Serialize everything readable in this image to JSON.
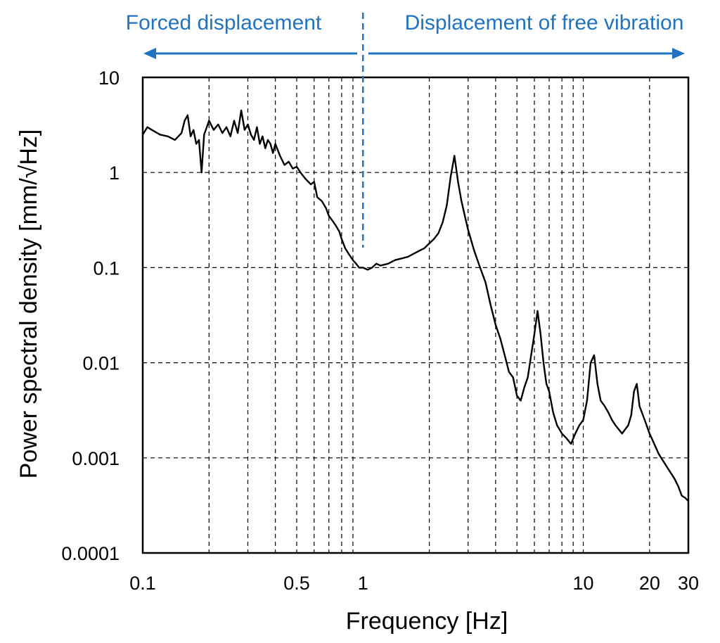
{
  "chart_data": {
    "type": "line",
    "x_scale": "log",
    "y_scale": "log",
    "xlim": [
      0.1,
      30
    ],
    "ylim": [
      0.0001,
      10
    ],
    "xlabel": "Frequency [Hz]",
    "ylabel": "Power spectral density [mm/√Hz]",
    "x_tick_labels": [
      {
        "value": 0.1,
        "label": "0.1"
      },
      {
        "value": 0.5,
        "label": "0.5"
      },
      {
        "value": 1,
        "label": "1"
      },
      {
        "value": 10,
        "label": "10"
      },
      {
        "value": 20,
        "label": "20"
      },
      {
        "value": 30,
        "label": "30"
      }
    ],
    "y_tick_labels": [
      {
        "value": 10,
        "label": "10"
      },
      {
        "value": 1,
        "label": "1"
      },
      {
        "value": 0.1,
        "label": "0.1"
      },
      {
        "value": 0.01,
        "label": "0.01"
      },
      {
        "value": 0.001,
        "label": "0.001"
      },
      {
        "value": 0.0001,
        "label": "0.0001"
      }
    ],
    "x_grid": [
      0.2,
      0.3,
      0.4,
      0.5,
      0.6,
      0.7,
      0.8,
      0.9,
      1,
      2,
      3,
      4,
      5,
      6,
      7,
      8,
      9,
      10,
      20
    ],
    "y_grid": [
      1,
      0.1,
      0.01,
      0.001
    ],
    "grid": true,
    "legend": "none",
    "regions": {
      "divider_x": 1,
      "left_label": "Forced displacement",
      "right_label": "Displacement of free vibration"
    },
    "series": [
      {
        "x": [
          0.1,
          0.105,
          0.11,
          0.12,
          0.13,
          0.14,
          0.15,
          0.155,
          0.16,
          0.165,
          0.17,
          0.175,
          0.18,
          0.185,
          0.19,
          0.2,
          0.21,
          0.22,
          0.23,
          0.24,
          0.25,
          0.26,
          0.27,
          0.28,
          0.29,
          0.3,
          0.31,
          0.32,
          0.33,
          0.34,
          0.35,
          0.36,
          0.37,
          0.38,
          0.39,
          0.4,
          0.42,
          0.44,
          0.46,
          0.48,
          0.5,
          0.52,
          0.55,
          0.58,
          0.6,
          0.62,
          0.65,
          0.68,
          0.7,
          0.72,
          0.75,
          0.78,
          0.8,
          0.83,
          0.86,
          0.9,
          0.93,
          0.96,
          1.0,
          1.05,
          1.1,
          1.15,
          1.2,
          1.3,
          1.4,
          1.5,
          1.6,
          1.7,
          1.8,
          1.9,
          2.0,
          2.1,
          2.2,
          2.3,
          2.4,
          2.5,
          2.6,
          2.7,
          2.8,
          2.9,
          3.0,
          3.2,
          3.4,
          3.6,
          3.8,
          4.0,
          4.2,
          4.4,
          4.6,
          4.8,
          5.0,
          5.2,
          5.4,
          5.6,
          5.8,
          6.0,
          6.2,
          6.4,
          6.6,
          6.8,
          7.0,
          7.3,
          7.6,
          8.0,
          8.4,
          8.8,
          9.2,
          9.6,
          10.0,
          10.4,
          10.8,
          11.2,
          11.6,
          12.0,
          12.5,
          13.0,
          13.5,
          14.0,
          15.0,
          16.0,
          16.5,
          17.0,
          17.5,
          18.0,
          19.0,
          20.0,
          21.0,
          22.0,
          24.0,
          26.0,
          27.0,
          28.0,
          29.0,
          30.0
        ],
        "y": [
          2.5,
          3.0,
          2.8,
          2.5,
          2.4,
          2.2,
          2.6,
          3.5,
          4.0,
          2.4,
          2.8,
          2.0,
          2.2,
          1.0,
          2.5,
          3.5,
          2.8,
          3.2,
          2.6,
          3.0,
          2.4,
          3.5,
          2.6,
          4.5,
          2.8,
          3.2,
          2.5,
          2.2,
          3.0,
          2.0,
          2.4,
          1.8,
          2.2,
          2.0,
          1.6,
          2.0,
          1.5,
          1.2,
          1.3,
          1.1,
          1.15,
          1.0,
          0.85,
          0.75,
          0.8,
          0.55,
          0.5,
          0.42,
          0.35,
          0.32,
          0.28,
          0.24,
          0.2,
          0.16,
          0.14,
          0.12,
          0.11,
          0.1,
          0.1,
          0.095,
          0.1,
          0.11,
          0.105,
          0.11,
          0.12,
          0.125,
          0.13,
          0.14,
          0.15,
          0.16,
          0.18,
          0.2,
          0.23,
          0.3,
          0.45,
          0.9,
          1.5,
          0.8,
          0.5,
          0.35,
          0.25,
          0.15,
          0.1,
          0.07,
          0.04,
          0.025,
          0.018,
          0.012,
          0.008,
          0.007,
          0.0045,
          0.004,
          0.0055,
          0.007,
          0.012,
          0.02,
          0.035,
          0.02,
          0.01,
          0.006,
          0.005,
          0.003,
          0.0022,
          0.0018,
          0.0016,
          0.0014,
          0.0018,
          0.0022,
          0.0025,
          0.004,
          0.01,
          0.012,
          0.006,
          0.004,
          0.0035,
          0.003,
          0.0025,
          0.0022,
          0.0018,
          0.0022,
          0.0028,
          0.005,
          0.006,
          0.0035,
          0.0025,
          0.0018,
          0.0014,
          0.0011,
          0.0008,
          0.0006,
          0.0005,
          0.0004,
          0.00038,
          0.00035
        ]
      }
    ]
  }
}
